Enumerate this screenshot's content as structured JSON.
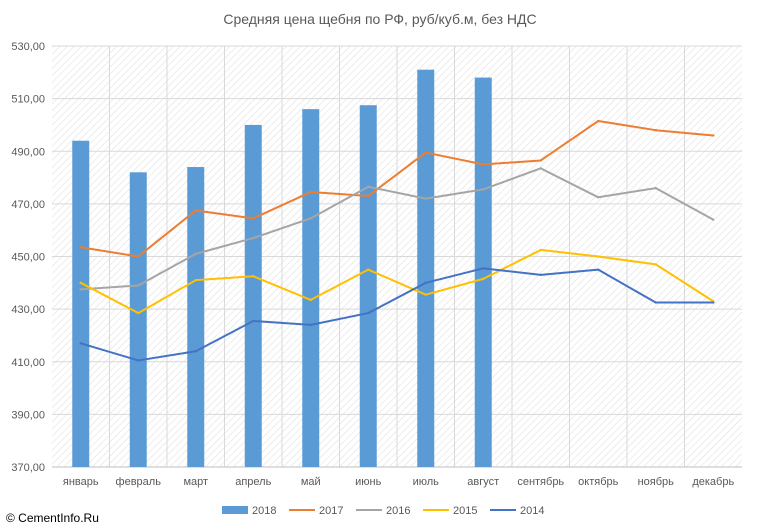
{
  "chart_data": {
    "type": "bar+line",
    "title": "Средняя цена щебня по РФ, руб/куб.м, без НДС",
    "categories": [
      "январь",
      "февраль",
      "март",
      "апрель",
      "май",
      "июнь",
      "июль",
      "август",
      "сентябрь",
      "октябрь",
      "ноябрь",
      "декабрь"
    ],
    "ylim": [
      370,
      530
    ],
    "yticks": [
      "370,00",
      "390,00",
      "410,00",
      "430,00",
      "450,00",
      "470,00",
      "490,00",
      "510,00",
      "530,00"
    ],
    "grid": true,
    "legend_position": "bottom",
    "series": [
      {
        "name": "2018",
        "type": "bar",
        "color": "#5b9bd5",
        "values": [
          494,
          482,
          484,
          500,
          506,
          507.5,
          521,
          518,
          null,
          null,
          null,
          null
        ]
      },
      {
        "name": "2017",
        "type": "line",
        "color": "#ed7d31",
        "values": [
          453.5,
          450,
          467.5,
          464.5,
          474.5,
          473,
          489.5,
          485,
          486.5,
          501.5,
          498,
          496
        ]
      },
      {
        "name": "2016",
        "type": "line",
        "color": "#a5a5a5",
        "values": [
          437.5,
          439,
          451,
          457,
          464.5,
          476.5,
          472,
          475.5,
          483.5,
          472.5,
          476,
          464
        ]
      },
      {
        "name": "2015",
        "type": "line",
        "color": "#ffc000",
        "values": [
          440,
          428.5,
          441,
          442.5,
          433.5,
          445,
          435.5,
          441.5,
          452.5,
          450,
          447,
          433
        ]
      },
      {
        "name": "2014",
        "type": "line",
        "color": "#4472c4",
        "values": [
          417,
          410.5,
          414,
          425.5,
          424,
          428.5,
          440,
          445.5,
          443,
          445,
          432.5,
          432.5
        ]
      }
    ]
  },
  "watermark": "© CementInfo.Ru"
}
